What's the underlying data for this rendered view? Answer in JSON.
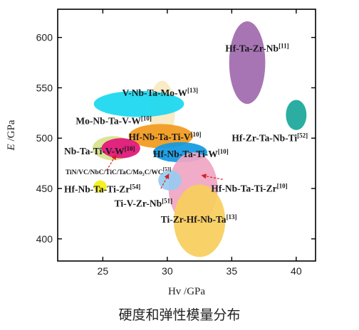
{
  "chart_data": {
    "type": "scatter",
    "xlabel": "Hv /GPa",
    "ylabel": "E /GPa",
    "xlim": [
      21.5,
      41.5
    ],
    "ylim": [
      378,
      628
    ],
    "xticks": [
      25,
      30,
      35,
      40
    ],
    "yticks": [
      400,
      450,
      500,
      550,
      600
    ],
    "grid": false,
    "series": [
      {
        "name": "Hf-Ta-Zr-Nb[11]",
        "x": 36.2,
        "y": 575,
        "rx": 1.4,
        "ry": 41,
        "color": "#a16aae",
        "label": {
          "text": "Hf-Ta-Zr-Nb",
          "sup": "[11]",
          "x": 34.5,
          "y": 586,
          "anchor": "start"
        }
      },
      {
        "name": "Hf-Zr-Ta-Nb-Ti[52]",
        "x": 40.0,
        "y": 523,
        "rx": 0.8,
        "ry": 15,
        "color": "#1ba89a",
        "label": {
          "text": "Hf-Zr-Ta-Nb-Ti",
          "sup": "[52]",
          "x": 35.0,
          "y": 497,
          "anchor": "start"
        }
      },
      {
        "name": "V-Nb-Ta-Mo-W[13]",
        "x": 29.6,
        "y": 527,
        "rx": 1.0,
        "ry": 30,
        "color": "#f7e9c2",
        "label": {
          "text": "V-Nb-Ta-Mo-W",
          "sup": "[13]",
          "x": 26.5,
          "y": 542,
          "anchor": "start"
        }
      },
      {
        "name": "Mo-Nb-Ta-V-W[10]",
        "x": 27.8,
        "y": 534,
        "rx": 3.5,
        "ry": 13,
        "color": "#1ad7f0",
        "label": {
          "text": "Mo-Nb-Ta-V-W",
          "sup": "[10]",
          "x": 22.9,
          "y": 514,
          "anchor": "start"
        }
      },
      {
        "name": "Hf-Nb-Ta-Ti-V[10]",
        "x": 29.5,
        "y": 502,
        "rx": 2.5,
        "ry": 12,
        "color": "#f29a1e",
        "label": {
          "text": "Hf-Nb-Ta-Ti-V",
          "sup": "[10]",
          "x": 27.0,
          "y": 498,
          "anchor": "start"
        }
      },
      {
        "name": "Nb-Ta-Ti-V-W[10]",
        "x": 25.8,
        "y": 490,
        "rx": 1.6,
        "ry": 12,
        "color": "#d8e28e",
        "label": {
          "text": "Nb-Ta-Ti-V-W",
          "sup": "[10]",
          "x": 22.0,
          "y": 484,
          "anchor": "start"
        }
      },
      {
        "name": "Nb-Ta-Ti-V-W[10] (core)",
        "x": 26.4,
        "y": 490,
        "rx": 1.5,
        "ry": 10,
        "color": "#e1157b",
        "label": null
      },
      {
        "name": "Hf-Nb-Ta-Ti-W[10]",
        "x": 31.0,
        "y": 486,
        "rx": 2.1,
        "ry": 10,
        "color": "#129ae3",
        "label": {
          "text": "Hf-Nb-Ta-Ti-W",
          "sup": "[10]",
          "x": 28.9,
          "y": 481,
          "anchor": "start"
        }
      },
      {
        "name": "Hf-Nb-Ta-Ti-Zr[10]",
        "x": 32.0,
        "y": 450,
        "rx": 1.9,
        "ry": 36,
        "color": "#f0a6c4",
        "label": {
          "text": "Hf-Nb-Ta-Ti-Zr",
          "sup": "[10]",
          "x": 33.4,
          "y": 447,
          "anchor": "start"
        }
      },
      {
        "name": "Ti-Zr-Hf-Nb-Ta[13]",
        "x": 32.5,
        "y": 418,
        "rx": 2.0,
        "ry": 36,
        "color": "#f8cf5c",
        "label": {
          "text": "Ti-Zr-Hf-Nb-Ta",
          "sup": "[13]",
          "x": 29.5,
          "y": 416,
          "anchor": "start"
        }
      },
      {
        "name": "Ti-V-Zr-Nb[51]",
        "x": 30.2,
        "y": 458,
        "rx": 0.9,
        "ry": 10,
        "color": "#98cbf0",
        "label": {
          "text": "Ti-V-Zr-Nb",
          "sup": "[51]",
          "x": 25.9,
          "y": 432,
          "anchor": "start"
        }
      },
      {
        "name": "Hf-Nb-Ta-Ti-Zr[54]",
        "x": 24.8,
        "y": 452,
        "rx": 0.5,
        "ry": 6,
        "color": "#f4ef14",
        "label": {
          "text": "Hf-Nb-Ta-Ti-Zr",
          "sup": "[54]",
          "x": 22.0,
          "y": 446,
          "anchor": "start"
        }
      }
    ],
    "annotations": [
      {
        "text": "TiN/VC/NbC/TiC/TaC/Mo₂C/WC",
        "sup": "[53]",
        "x": 22.1,
        "y": 464,
        "anchor": "start"
      }
    ],
    "arrows": [
      {
        "from": [
          25.3,
          468
        ],
        "to": [
          26.0,
          483
        ]
      },
      {
        "from": [
          29.5,
          450
        ],
        "to": [
          30.1,
          464
        ]
      },
      {
        "from": [
          34.3,
          459
        ],
        "to": [
          32.7,
          463
        ]
      }
    ]
  },
  "caption": "硬度和弹性模量分布"
}
